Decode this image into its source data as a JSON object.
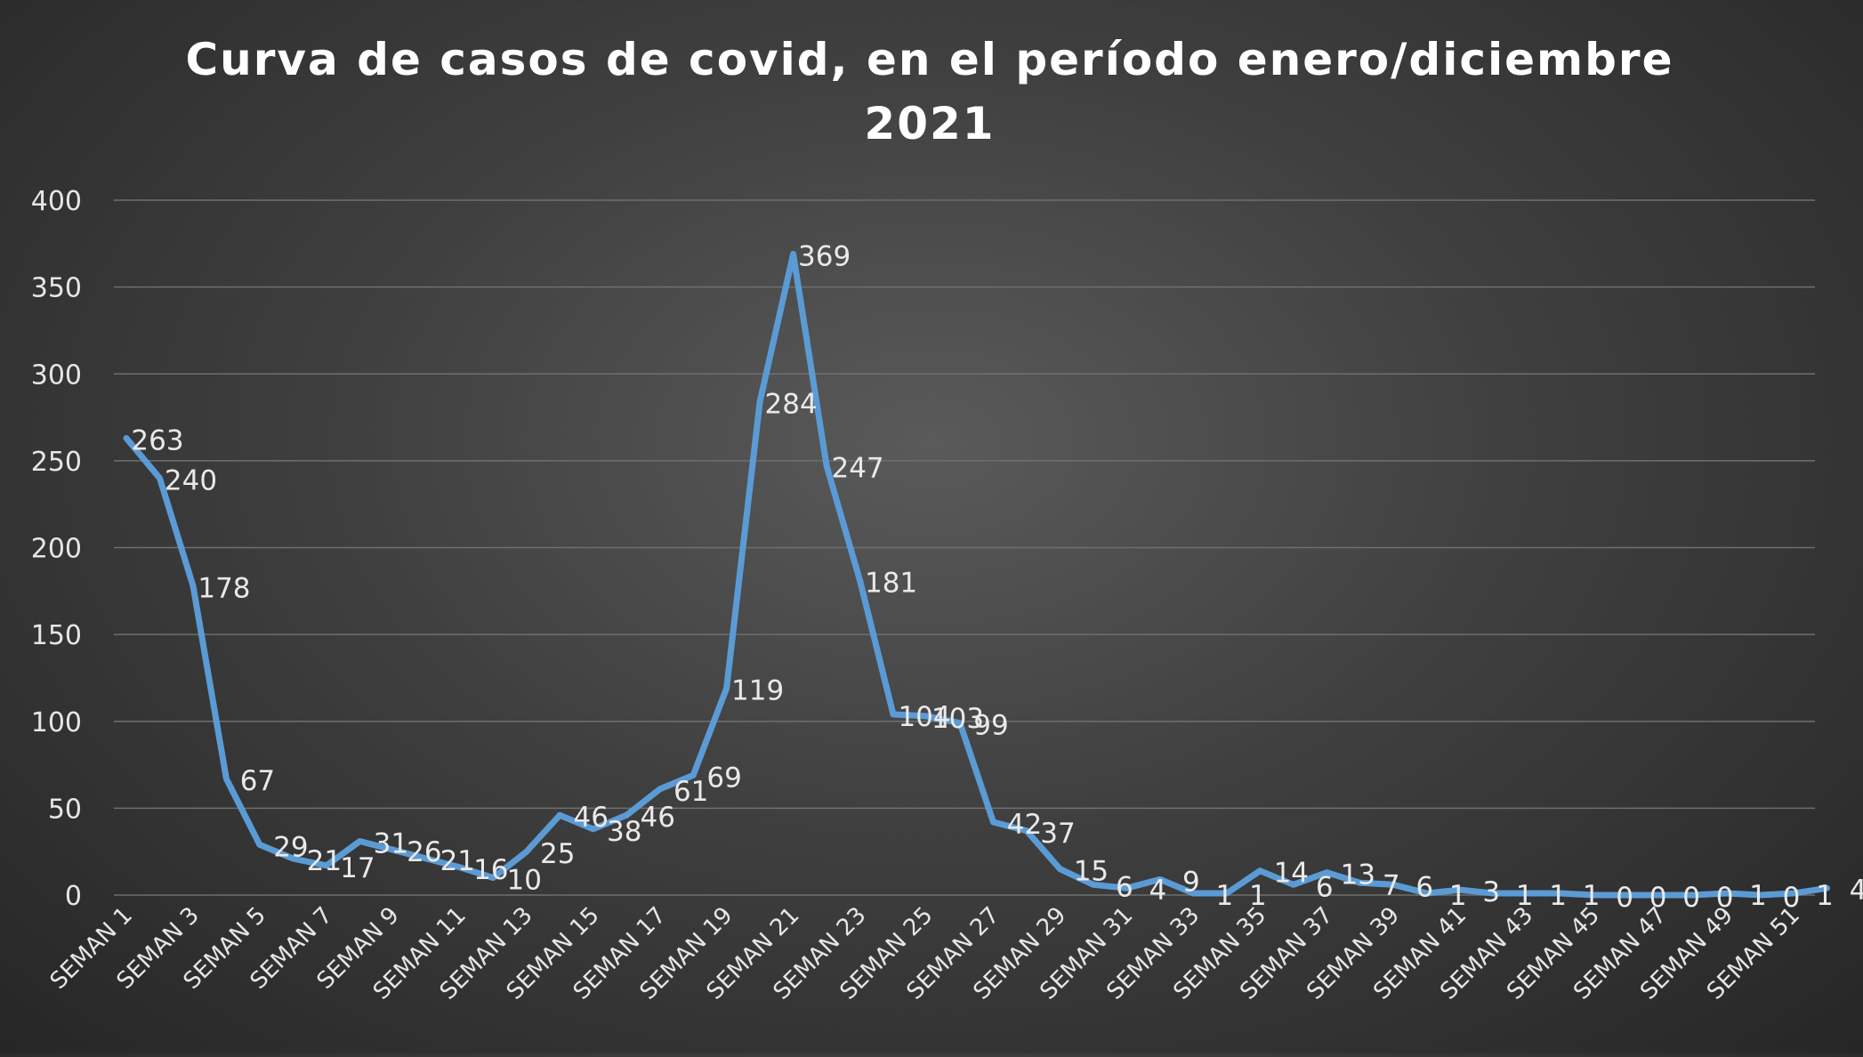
{
  "title_line1": "Curva de casos de covid, en el período enero/diciembre",
  "title_line2": "2021",
  "chart_data": {
    "type": "line",
    "title": "Curva de casos de covid, en el período enero/diciembre 2021",
    "xlabel": "",
    "ylabel": "",
    "ylim": [
      0,
      400
    ],
    "yticks": [
      0,
      50,
      100,
      150,
      200,
      250,
      300,
      350,
      400
    ],
    "grid": true,
    "legend": "none",
    "line_color": "#5b9bd5",
    "x": [
      "SEMAN 1",
      "SEMAN 2",
      "SEMAN 3",
      "SEMAN 4",
      "SEMAN 5",
      "SEMAN 6",
      "SEMAN 7",
      "SEMAN 8",
      "SEMAN 9",
      "SEMAN 10",
      "SEMAN 11",
      "SEMAN 12",
      "SEMAN 13",
      "SEMAN 14",
      "SEMAN 15",
      "SEMAN 16",
      "SEMAN 17",
      "SEMAN 18",
      "SEMAN 19",
      "SEMAN 20",
      "SEMAN 21",
      "SEMAN 22",
      "SEMAN 23",
      "SEMAN 24",
      "SEMAN 25",
      "SEMAN 26",
      "SEMAN 27",
      "SEMAN 28",
      "SEMAN 29",
      "SEMAN 30",
      "SEMAN 31",
      "SEMAN 32",
      "SEMAN 33",
      "SEMAN 34",
      "SEMAN 35",
      "SEMAN 36",
      "SEMAN 37",
      "SEMAN 38",
      "SEMAN 39",
      "SEMAN 40",
      "SEMAN 41",
      "SEMAN 42",
      "SEMAN 43",
      "SEMAN 44",
      "SEMAN 45",
      "SEMAN 46",
      "SEMAN 47",
      "SEMAN 48",
      "SEMAN 49",
      "SEMAN 50",
      "SEMAN 51",
      "SEMAN 52"
    ],
    "xtick_labels": [
      "SEMAN 1",
      "SEMAN 3",
      "SEMAN 5",
      "SEMAN 7",
      "SEMAN 9",
      "SEMAN 11",
      "SEMAN 13",
      "SEMAN 15",
      "SEMAN 17",
      "SEMAN 19",
      "SEMAN 21",
      "SEMAN 23",
      "SEMAN 25",
      "SEMAN 27",
      "SEMAN 29",
      "SEMAN 31",
      "SEMAN 33",
      "SEMAN 35",
      "SEMAN 37",
      "SEMAN 39",
      "SEMAN 41",
      "SEMAN 43",
      "SEMAN 45",
      "SEMAN 47",
      "SEMAN 49",
      "SEMAN 51"
    ],
    "values": [
      263,
      240,
      178,
      67,
      29,
      21,
      17,
      31,
      26,
      21,
      16,
      10,
      25,
      46,
      38,
      46,
      61,
      69,
      119,
      284,
      369,
      247,
      181,
      104,
      103,
      99,
      42,
      37,
      15,
      6,
      4,
      9,
      1,
      1,
      14,
      6,
      13,
      7,
      6,
      1,
      3,
      1,
      1,
      1,
      0,
      0,
      0,
      0,
      1,
      0,
      1,
      4
    ]
  }
}
